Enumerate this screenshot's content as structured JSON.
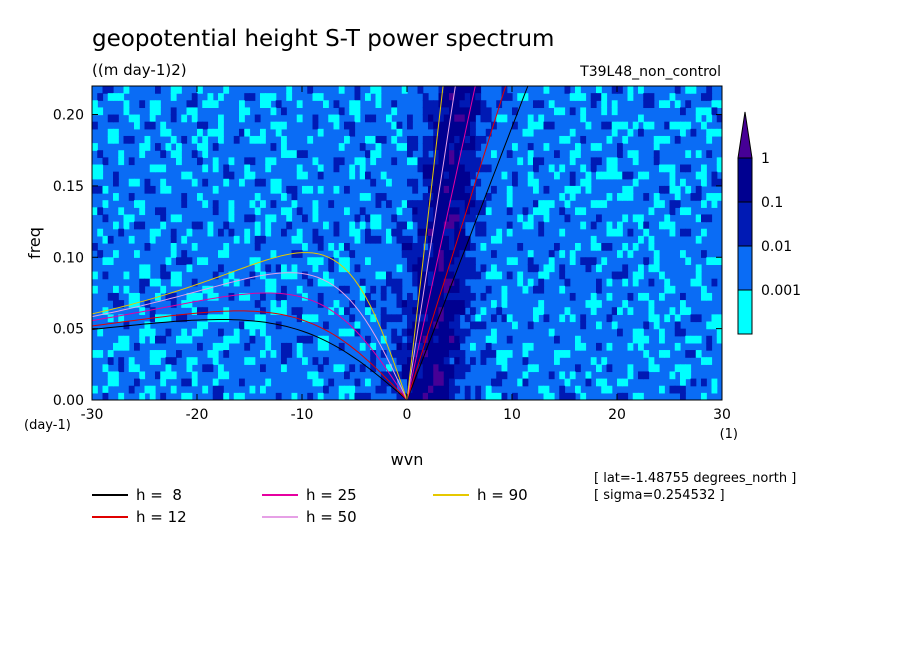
{
  "title": "geopotential height S-T power spectrum",
  "units": "((m day-1)2)",
  "run_label": "T39L48_non_control",
  "info": [
    "[ lat=-1.48755 degrees_north ]",
    "[ sigma=0.254532 ]"
  ],
  "colors": {
    "level_0": "#00ffff",
    "level_1": "#0a6cf5",
    "level_2": "#001ab4",
    "level_3": "#000090",
    "level_top": "#460096"
  },
  "chart_data": {
    "type": "heatmap",
    "xlabel": "wvn",
    "ylabel": "freq",
    "x_unit": "(1)",
    "y_unit": "(day-1)",
    "xlim": [
      -30,
      30
    ],
    "ylim": [
      0,
      0.22
    ],
    "x_ticks": [
      -30,
      -20,
      -10,
      0,
      10,
      20,
      30
    ],
    "x_tick_labels": [
      "-30",
      "-20",
      "-10",
      "0",
      "10",
      "20",
      "30"
    ],
    "y_ticks": [
      0,
      0.05,
      0.1,
      0.15,
      0.2
    ],
    "y_tick_labels": [
      "0.00",
      "0.05",
      "0.10",
      "0.15",
      "0.20"
    ],
    "colorbar": {
      "levels": [
        0.001,
        0.01,
        0.1,
        1
      ],
      "labels": [
        "0.001",
        "0.01",
        "0.1",
        "1"
      ],
      "extend": "max"
    },
    "dispersion_curves": [
      {
        "name": "h =  8",
        "h": 8,
        "color": "#000000"
      },
      {
        "name": "h = 12",
        "h": 12,
        "color": "#e00000"
      },
      {
        "name": "h = 25",
        "h": 25,
        "color": "#e600a0"
      },
      {
        "name": "h = 50",
        "h": 50,
        "color": "#e6a0e6"
      },
      {
        "name": "h = 90",
        "h": 90,
        "color": "#e6c800"
      }
    ]
  }
}
